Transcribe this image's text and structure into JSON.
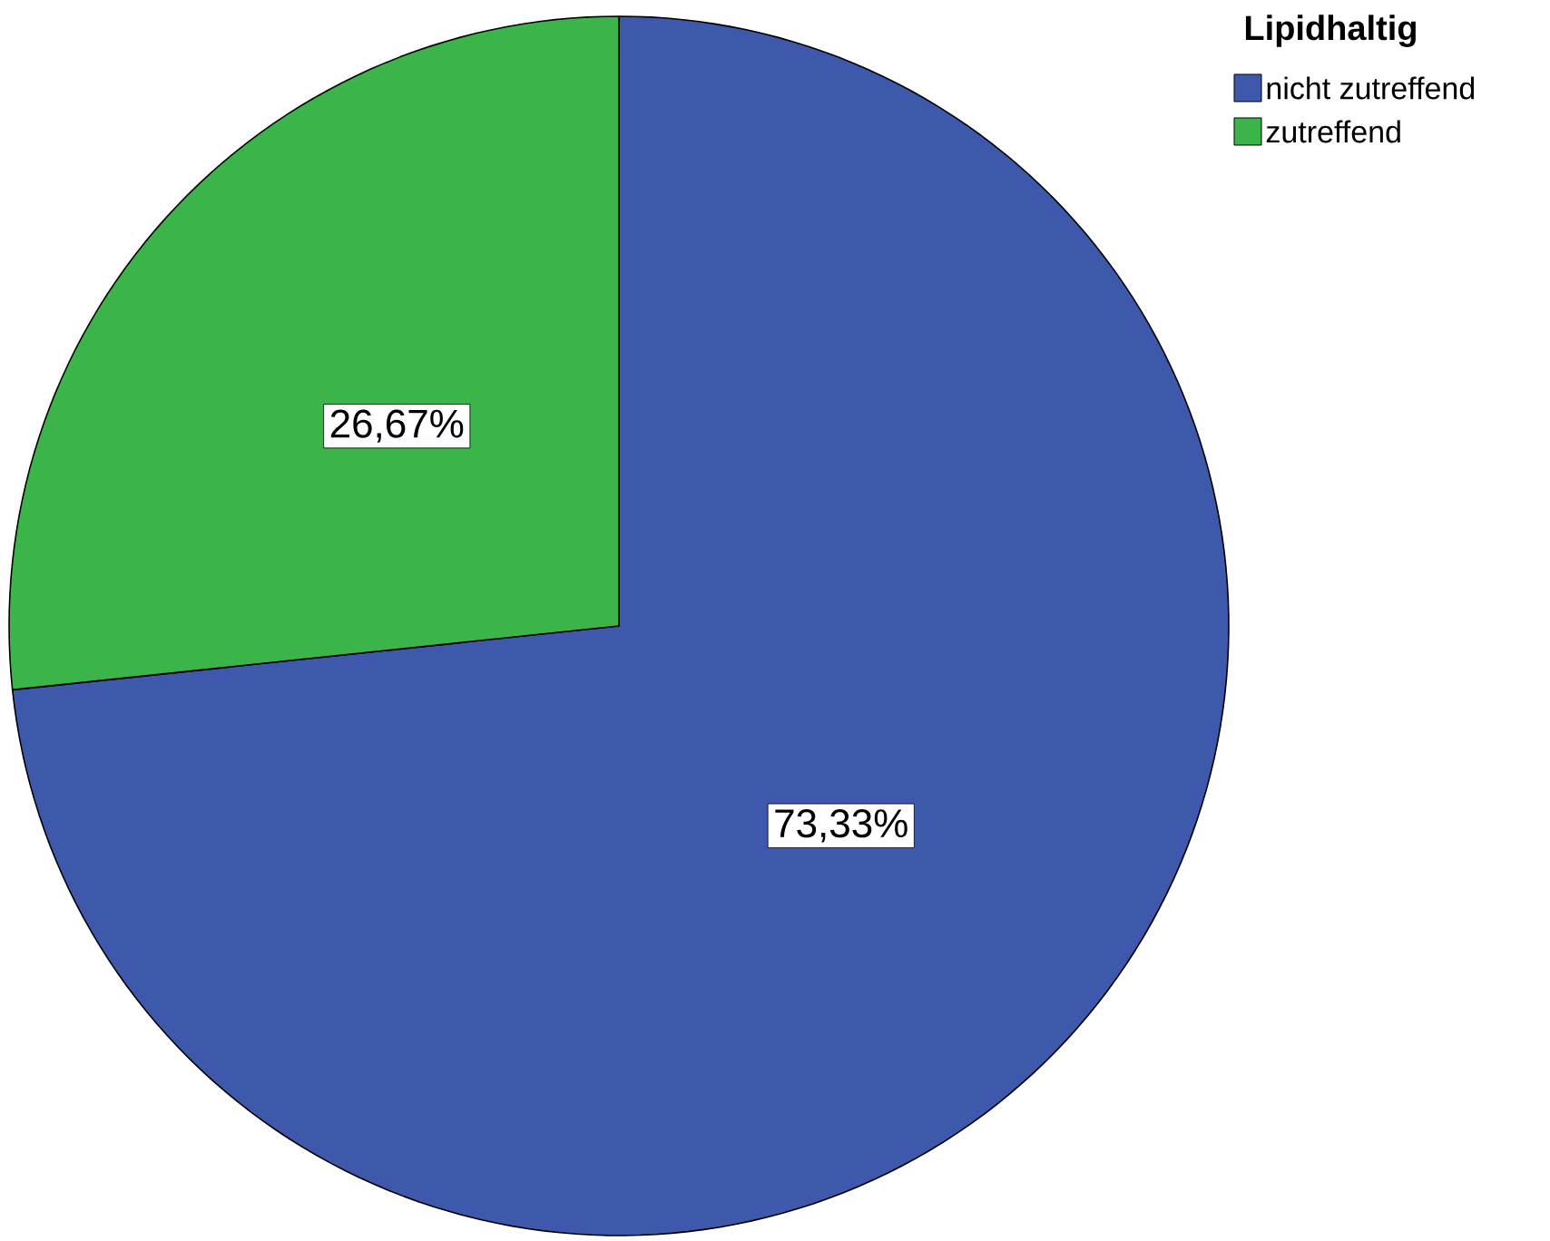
{
  "chart_data": {
    "type": "pie",
    "categories": [
      "nicht zutreffend",
      "zutreffend"
    ],
    "values": [
      73.33,
      26.67
    ],
    "colors": [
      "#3e58ac",
      "#3bb54a"
    ],
    "value_labels": [
      "73,33%",
      "26,67%"
    ],
    "legend": "top right",
    "legend_title": "Lipidhaltig"
  }
}
